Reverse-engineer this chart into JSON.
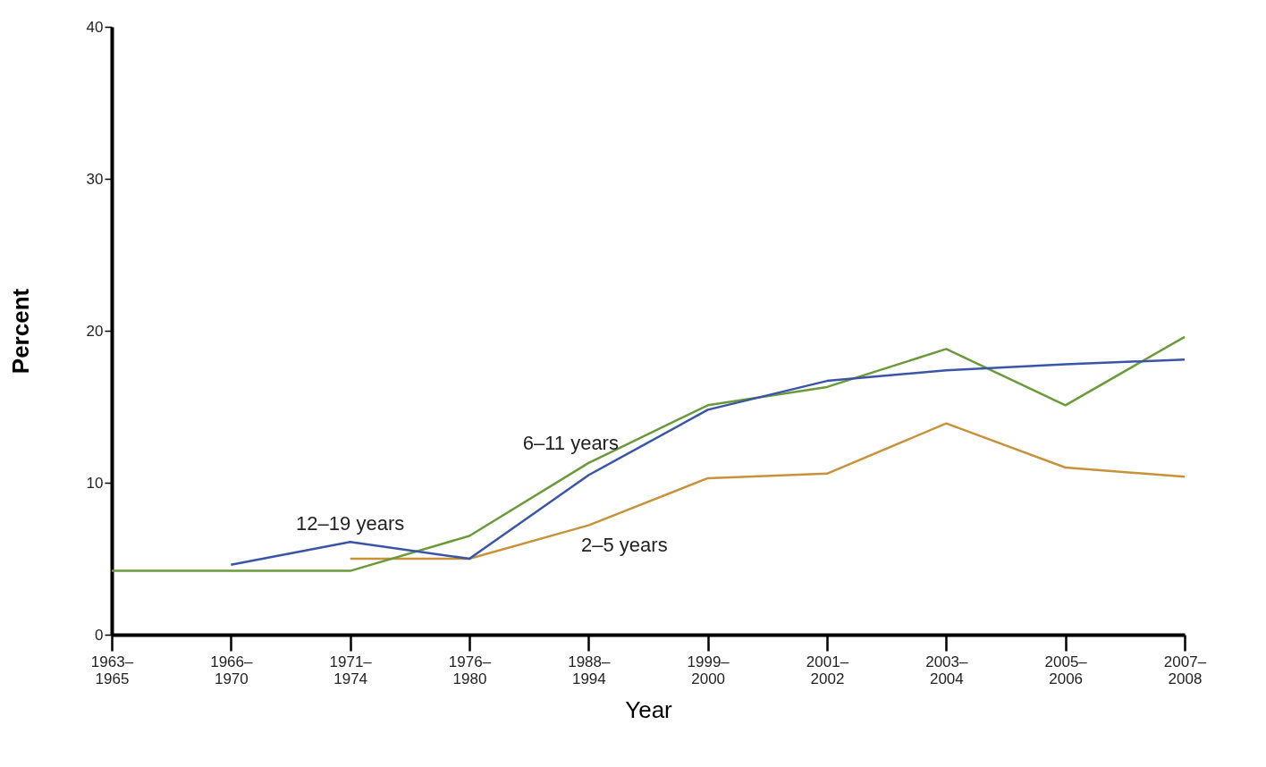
{
  "chart_data": {
    "type": "line",
    "xlabel": "Year",
    "ylabel": "Percent",
    "ylim": [
      0,
      40
    ],
    "yticks": [
      0,
      10,
      20,
      30,
      40
    ],
    "categories": [
      "1963–1965",
      "1966–1970",
      "1971–1974",
      "1976–1980",
      "1988–1994",
      "1999–2000",
      "2001–2002",
      "2003–2004",
      "2005–2006",
      "2007–2008"
    ],
    "grid": false,
    "legend": false,
    "marker": "none",
    "line_style": "solid",
    "series": [
      {
        "name": "2–5 years",
        "color": "#c8923a",
        "values": [
          null,
          null,
          5.0,
          5.0,
          7.2,
          10.3,
          10.6,
          13.9,
          11.0,
          10.4
        ]
      },
      {
        "name": "6–11 years",
        "color": "#6a9a3a",
        "values": [
          4.2,
          null,
          4.2,
          6.5,
          11.3,
          15.1,
          16.3,
          18.8,
          15.1,
          19.6
        ]
      },
      {
        "name": "12–19 years",
        "color": "#3a55a6",
        "values": [
          null,
          4.6,
          6.1,
          5.0,
          10.5,
          14.8,
          16.7,
          17.4,
          17.8,
          18.1
        ]
      }
    ]
  }
}
